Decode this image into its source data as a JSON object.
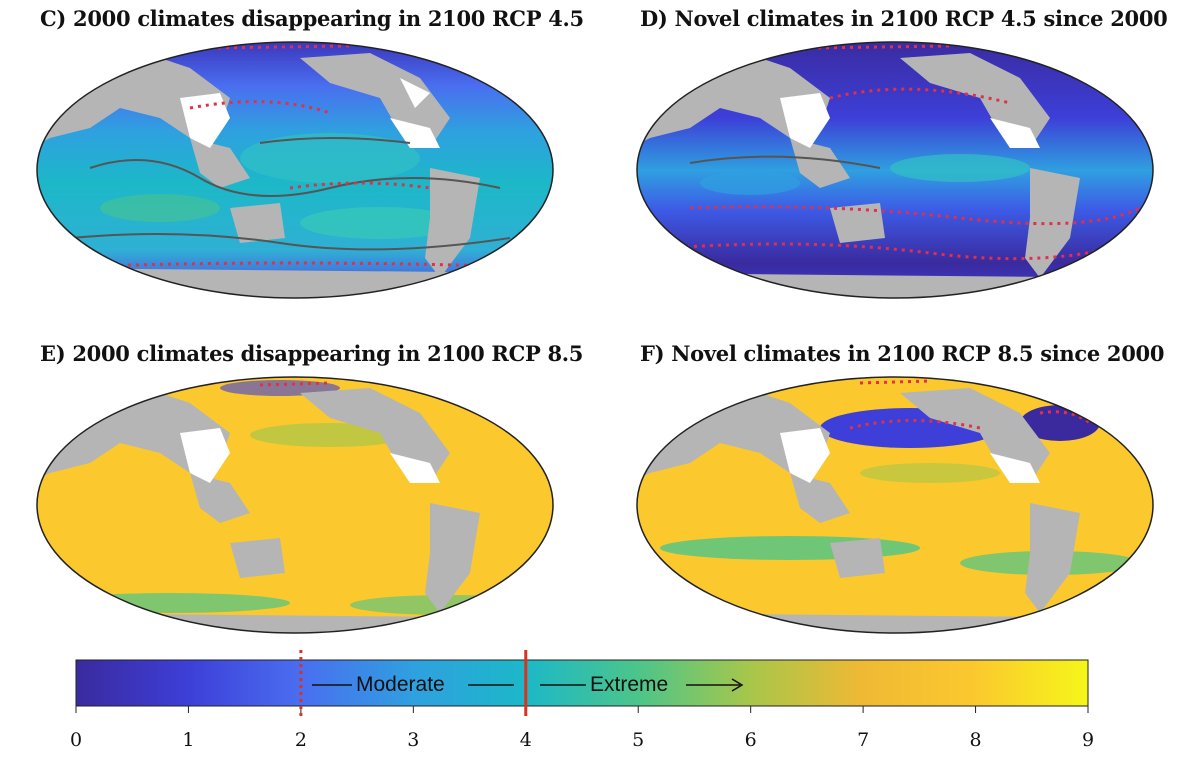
{
  "panels": [
    {
      "id": "c",
      "title": "C) 2000 climates disappearing in 2100 RCP 4.5",
      "scenario": "RCP 4.5",
      "metric": "disappearing"
    },
    {
      "id": "d",
      "title": "D) Novel climates in 2100 RCP 4.5 since 2000",
      "scenario": "RCP 4.5",
      "metric": "novel"
    },
    {
      "id": "e",
      "title": "E) 2000 climates disappearing in 2100 RCP 8.5",
      "scenario": "RCP 8.5",
      "metric": "disappearing"
    },
    {
      "id": "f",
      "title": "F) Novel climates in 2100 RCP 8.5 since 2000",
      "scenario": "RCP 8.5",
      "metric": "novel"
    }
  ],
  "colorbar": {
    "min": 0,
    "max": 9,
    "ticks": [
      "0",
      "1",
      "2",
      "3",
      "4",
      "5",
      "6",
      "7",
      "8",
      "9"
    ],
    "moderate_label": "Moderate",
    "extreme_label": "Extreme",
    "moderate_threshold": 2,
    "extreme_threshold": 4,
    "colors": [
      "#3a2a9e",
      "#3d3fd8",
      "#4a6ef0",
      "#2fa0e0",
      "#1cb8c8",
      "#4cc58a",
      "#a8c64a",
      "#f0b934",
      "#fbc92e",
      "#f6f61a"
    ]
  },
  "colors": {
    "land": "#b5b5b5",
    "ice_white": "#ffffff",
    "threshold_line": "#d8331f",
    "contour_moderate": "#555555",
    "contour_dotted": "#e0304a"
  }
}
